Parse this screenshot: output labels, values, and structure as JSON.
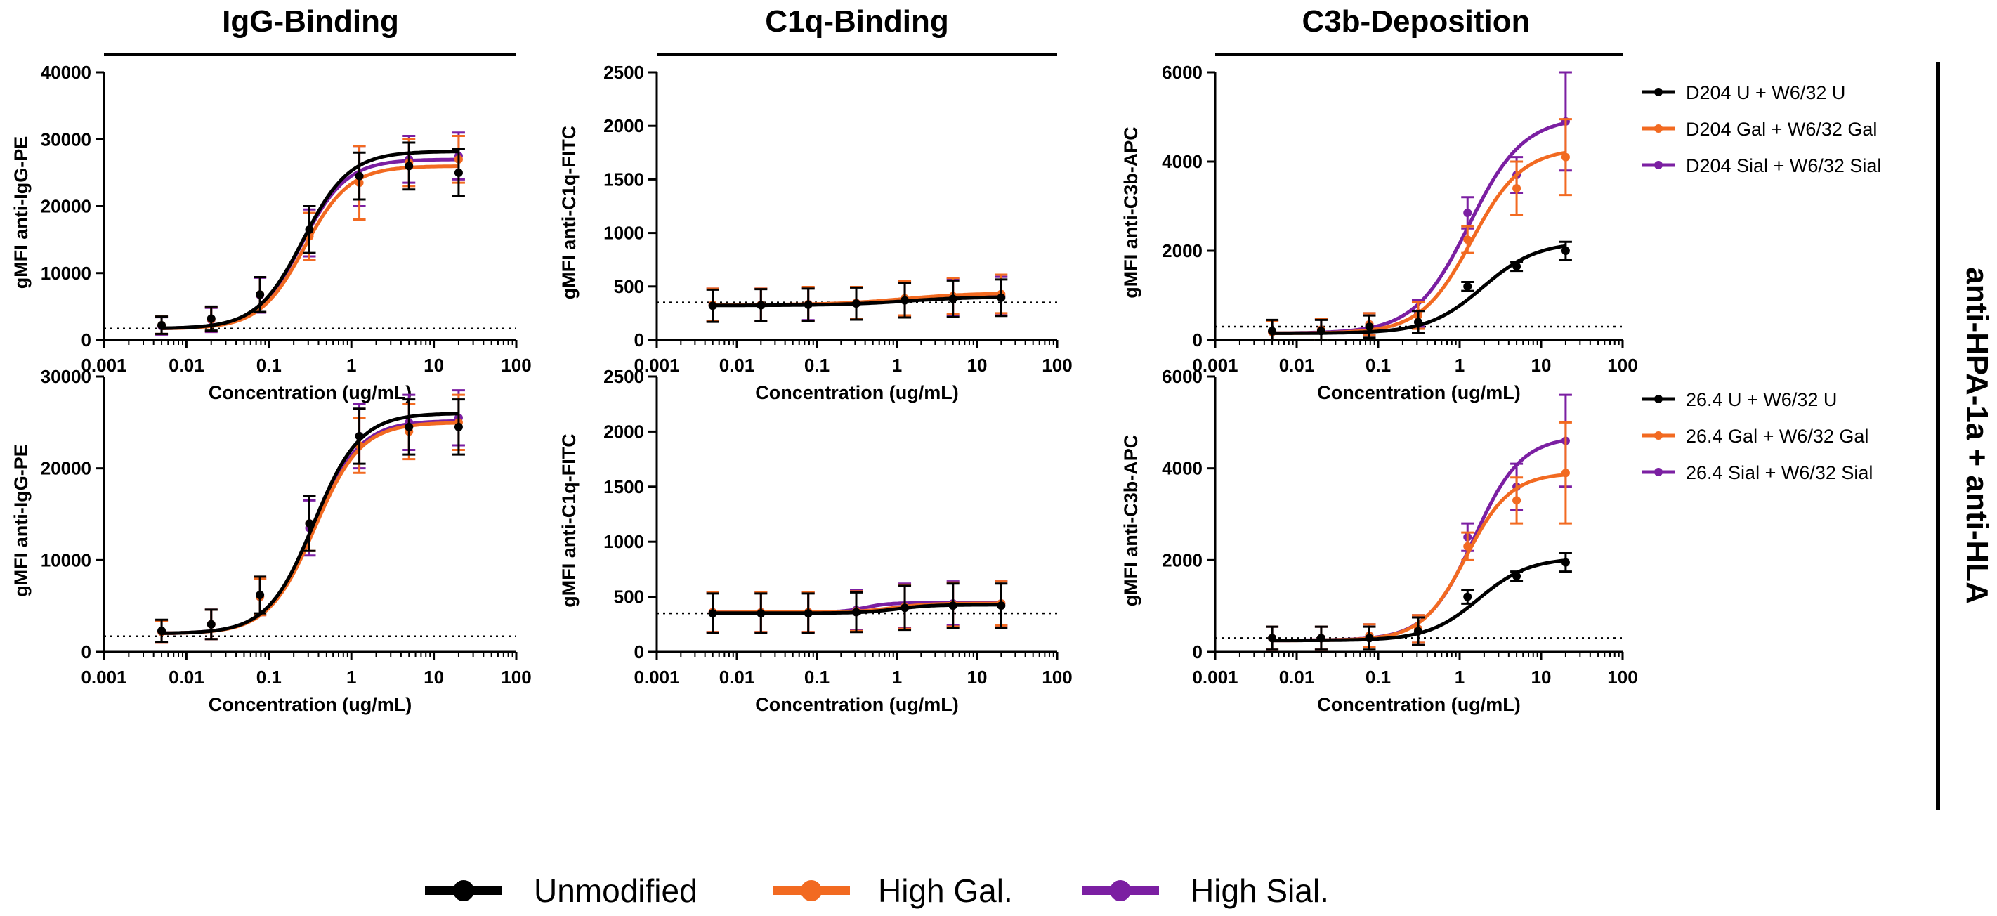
{
  "figure": {
    "column_titles": [
      "IgG-Binding",
      "C1q-Binding",
      "C3b-Deposition"
    ],
    "row_label": "anti-HPA-1a + anti-HLA",
    "bottom_legend": [
      {
        "label": "Unmodified",
        "color": "#000000"
      },
      {
        "label": "High Gal.",
        "color": "#f26a21"
      },
      {
        "label": "High Sial.",
        "color": "#7b1fa2"
      }
    ]
  },
  "chart_data": [
    {
      "type": "scatter",
      "title": "IgG-Binding",
      "xlabel": "Concentration (ug/mL)",
      "ylabel": "gMFI anti-IgG-PE",
      "xscale": "log",
      "xlim": [
        0.001,
        100
      ],
      "ylim": [
        0,
        40000
      ],
      "xticks": [
        "0.001",
        "0.01",
        "0.1",
        "1",
        "10",
        "100"
      ],
      "yticks": [
        0,
        10000,
        20000,
        30000,
        40000
      ],
      "baseline": 1700,
      "x": [
        0.005,
        0.02,
        0.078,
        0.31,
        1.25,
        5,
        20
      ],
      "series": [
        {
          "color": "#7b1fa2",
          "values": [
            2100,
            3000,
            6700,
            16000,
            24500,
            27000,
            27500
          ],
          "errors": [
            1300,
            1800,
            2600,
            3500,
            4500,
            3500,
            3500
          ],
          "fit": [
            1700,
            27000,
            0.25,
            1.6
          ]
        },
        {
          "color": "#f26a21",
          "values": [
            2200,
            3100,
            6800,
            15500,
            23500,
            26500,
            27000
          ],
          "errors": [
            1300,
            1800,
            2600,
            3500,
            5500,
            3500,
            3500
          ],
          "fit": [
            1700,
            26000,
            0.27,
            1.6
          ]
        },
        {
          "color": "#000000",
          "values": [
            2200,
            3200,
            6800,
            16500,
            24500,
            26000,
            25000
          ],
          "errors": [
            1300,
            1800,
            2600,
            3500,
            3500,
            3500,
            3500
          ],
          "fit": [
            1700,
            28200,
            0.26,
            1.55
          ]
        }
      ]
    },
    {
      "type": "scatter",
      "title": "C1q-Binding",
      "xlabel": "Concentration (ug/mL)",
      "ylabel": "gMFI anti-C1q-FITC",
      "xscale": "log",
      "xlim": [
        0.001,
        100
      ],
      "ylim": [
        0,
        2500
      ],
      "xticks": [
        "0.001",
        "0.01",
        "0.1",
        "1",
        "10",
        "100"
      ],
      "yticks": [
        0,
        500,
        1000,
        1500,
        2000,
        2500
      ],
      "baseline": 350,
      "x": [
        0.005,
        0.02,
        0.078,
        0.31,
        1.25,
        5,
        20
      ],
      "series": [
        {
          "color": "#7b1fa2",
          "values": [
            330,
            330,
            335,
            345,
            380,
            400,
            410
          ],
          "errors": [
            150,
            150,
            150,
            150,
            160,
            170,
            180
          ],
          "fit": [
            328,
            420,
            1.5,
            1
          ]
        },
        {
          "color": "#f26a21",
          "values": [
            330,
            330,
            335,
            345,
            390,
            410,
            430
          ],
          "errors": [
            150,
            150,
            160,
            150,
            160,
            170,
            180
          ],
          "fit": [
            328,
            440,
            1.2,
            1
          ]
        },
        {
          "color": "#000000",
          "values": [
            320,
            325,
            330,
            340,
            370,
            385,
            395
          ],
          "errors": [
            150,
            150,
            150,
            150,
            160,
            170,
            170
          ],
          "fit": [
            323,
            405,
            1.3,
            1
          ]
        }
      ]
    },
    {
      "type": "scatter",
      "title": "C3b-Deposition",
      "xlabel": "Concentration (ug/mL)",
      "ylabel": "gMFI anti-C3b-APC",
      "xscale": "log",
      "xlim": [
        0.001,
        100
      ],
      "ylim": [
        0,
        6000
      ],
      "xticks": [
        "0.001",
        "0.01",
        "0.1",
        "1",
        "10",
        "100"
      ],
      "yticks": [
        0,
        2000,
        4000,
        6000
      ],
      "baseline": 300,
      "legend": [
        "D204 U + W6/32 U",
        "D204 Gal + W6/32 Gal",
        "D204 Sial + W6/32 Sial"
      ],
      "x": [
        0.005,
        0.02,
        0.078,
        0.31,
        1.25,
        5,
        20
      ],
      "series": [
        {
          "color": "#7b1fa2",
          "values": [
            180,
            230,
            350,
            600,
            2850,
            3700,
            4900
          ],
          "errors": [
            250,
            250,
            250,
            300,
            350,
            400,
            1100
          ],
          "fit": [
            150,
            5000,
            1.3,
            1.3
          ]
        },
        {
          "color": "#f26a21",
          "values": [
            180,
            230,
            350,
            550,
            2250,
            3400,
            4100
          ],
          "errors": [
            250,
            250,
            250,
            300,
            300,
            600,
            850
          ],
          "fit": [
            150,
            4300,
            1.4,
            1.4
          ]
        },
        {
          "color": "#000000",
          "values": [
            200,
            200,
            300,
            400,
            1200,
            1650,
            2000
          ],
          "errors": [
            250,
            250,
            250,
            250,
            100,
            100,
            200
          ],
          "fit": [
            150,
            2200,
            1.9,
            1.3
          ]
        }
      ]
    },
    {
      "type": "scatter",
      "title": "",
      "xlabel": "Concentration (ug/mL)",
      "ylabel": "gMFI anti-IgG-PE",
      "xscale": "log",
      "xlim": [
        0.001,
        100
      ],
      "ylim": [
        0,
        30000
      ],
      "xticks": [
        "0.001",
        "0.01",
        "0.1",
        "1",
        "10",
        "100"
      ],
      "yticks": [
        0,
        10000,
        20000,
        30000
      ],
      "baseline": 1700,
      "x": [
        0.005,
        0.02,
        0.078,
        0.31,
        1.25,
        5,
        20
      ],
      "series": [
        {
          "color": "#7b1fa2",
          "values": [
            2200,
            3000,
            6000,
            13500,
            23500,
            25000,
            25500
          ],
          "errors": [
            1200,
            1600,
            2000,
            3000,
            3500,
            3000,
            3000
          ],
          "fit": [
            2000,
            25200,
            0.35,
            1.55
          ]
        },
        {
          "color": "#f26a21",
          "values": [
            2200,
            3000,
            6000,
            14000,
            22500,
            24000,
            25000
          ],
          "errors": [
            1200,
            1600,
            2000,
            3000,
            3000,
            3000,
            3000
          ],
          "fit": [
            2000,
            25000,
            0.36,
            1.55
          ]
        },
        {
          "color": "#000000",
          "values": [
            2300,
            3000,
            6200,
            14000,
            23500,
            24500,
            24500
          ],
          "errors": [
            1200,
            1600,
            2000,
            3000,
            3000,
            3000,
            3000
          ],
          "fit": [
            2000,
            26000,
            0.35,
            1.55
          ]
        }
      ]
    },
    {
      "type": "scatter",
      "title": "",
      "xlabel": "Concentration (ug/mL)",
      "ylabel": "gMFI anti-C1q-FITC",
      "xscale": "log",
      "xlim": [
        0.001,
        100
      ],
      "ylim": [
        0,
        2500
      ],
      "xticks": [
        "0.001",
        "0.01",
        "0.1",
        "1",
        "10",
        "100"
      ],
      "yticks": [
        0,
        500,
        1000,
        1500,
        2000,
        2500
      ],
      "baseline": 350,
      "x": [
        0.005,
        0.02,
        0.078,
        0.31,
        1.25,
        5,
        20
      ],
      "series": [
        {
          "color": "#7b1fa2",
          "values": [
            360,
            360,
            360,
            380,
            420,
            440,
            440
          ],
          "errors": [
            180,
            180,
            180,
            180,
            200,
            200,
            200
          ],
          "fit": [
            360,
            445,
            0.4,
            3
          ]
        },
        {
          "color": "#f26a21",
          "values": [
            360,
            360,
            360,
            370,
            410,
            430,
            440
          ],
          "errors": [
            180,
            180,
            180,
            180,
            200,
            200,
            200
          ],
          "fit": [
            360,
            440,
            0.9,
            2
          ]
        },
        {
          "color": "#000000",
          "values": [
            350,
            350,
            350,
            360,
            400,
            420,
            420
          ],
          "errors": [
            180,
            180,
            180,
            180,
            200,
            200,
            200
          ],
          "fit": [
            352,
            428,
            1.0,
            2
          ]
        }
      ]
    },
    {
      "type": "scatter",
      "title": "",
      "xlabel": "Concentration (ug/mL)",
      "ylabel": "gMFI anti-C3b-APC",
      "xscale": "log",
      "xlim": [
        0.001,
        100
      ],
      "ylim": [
        0,
        6000
      ],
      "xticks": [
        "0.001",
        "0.01",
        "0.1",
        "1",
        "10",
        "100"
      ],
      "yticks": [
        0,
        2000,
        4000,
        6000
      ],
      "baseline": 300,
      "legend": [
        "26.4 U + W6/32 U",
        "26.4 Gal + W6/32 Gal",
        "26.4 Sial + W6/32 Sial"
      ],
      "x": [
        0.005,
        0.02,
        0.078,
        0.31,
        1.25,
        5,
        20
      ],
      "series": [
        {
          "color": "#7b1fa2",
          "values": [
            300,
            300,
            350,
            500,
            2500,
            3600,
            4600
          ],
          "errors": [
            250,
            250,
            250,
            300,
            300,
            500,
            1000
          ],
          "fit": [
            250,
            4700,
            1.5,
            1.5
          ]
        },
        {
          "color": "#f26a21",
          "values": [
            300,
            300,
            350,
            500,
            2300,
            3300,
            3900
          ],
          "errors": [
            250,
            250,
            250,
            300,
            300,
            500,
            1100
          ],
          "fit": [
            250,
            3900,
            1.2,
            1.6
          ]
        },
        {
          "color": "#000000",
          "values": [
            300,
            300,
            300,
            450,
            1200,
            1650,
            1950
          ],
          "errors": [
            250,
            250,
            250,
            300,
            150,
            100,
            200
          ],
          "fit": [
            250,
            2050,
            1.7,
            1.4
          ]
        }
      ]
    }
  ]
}
